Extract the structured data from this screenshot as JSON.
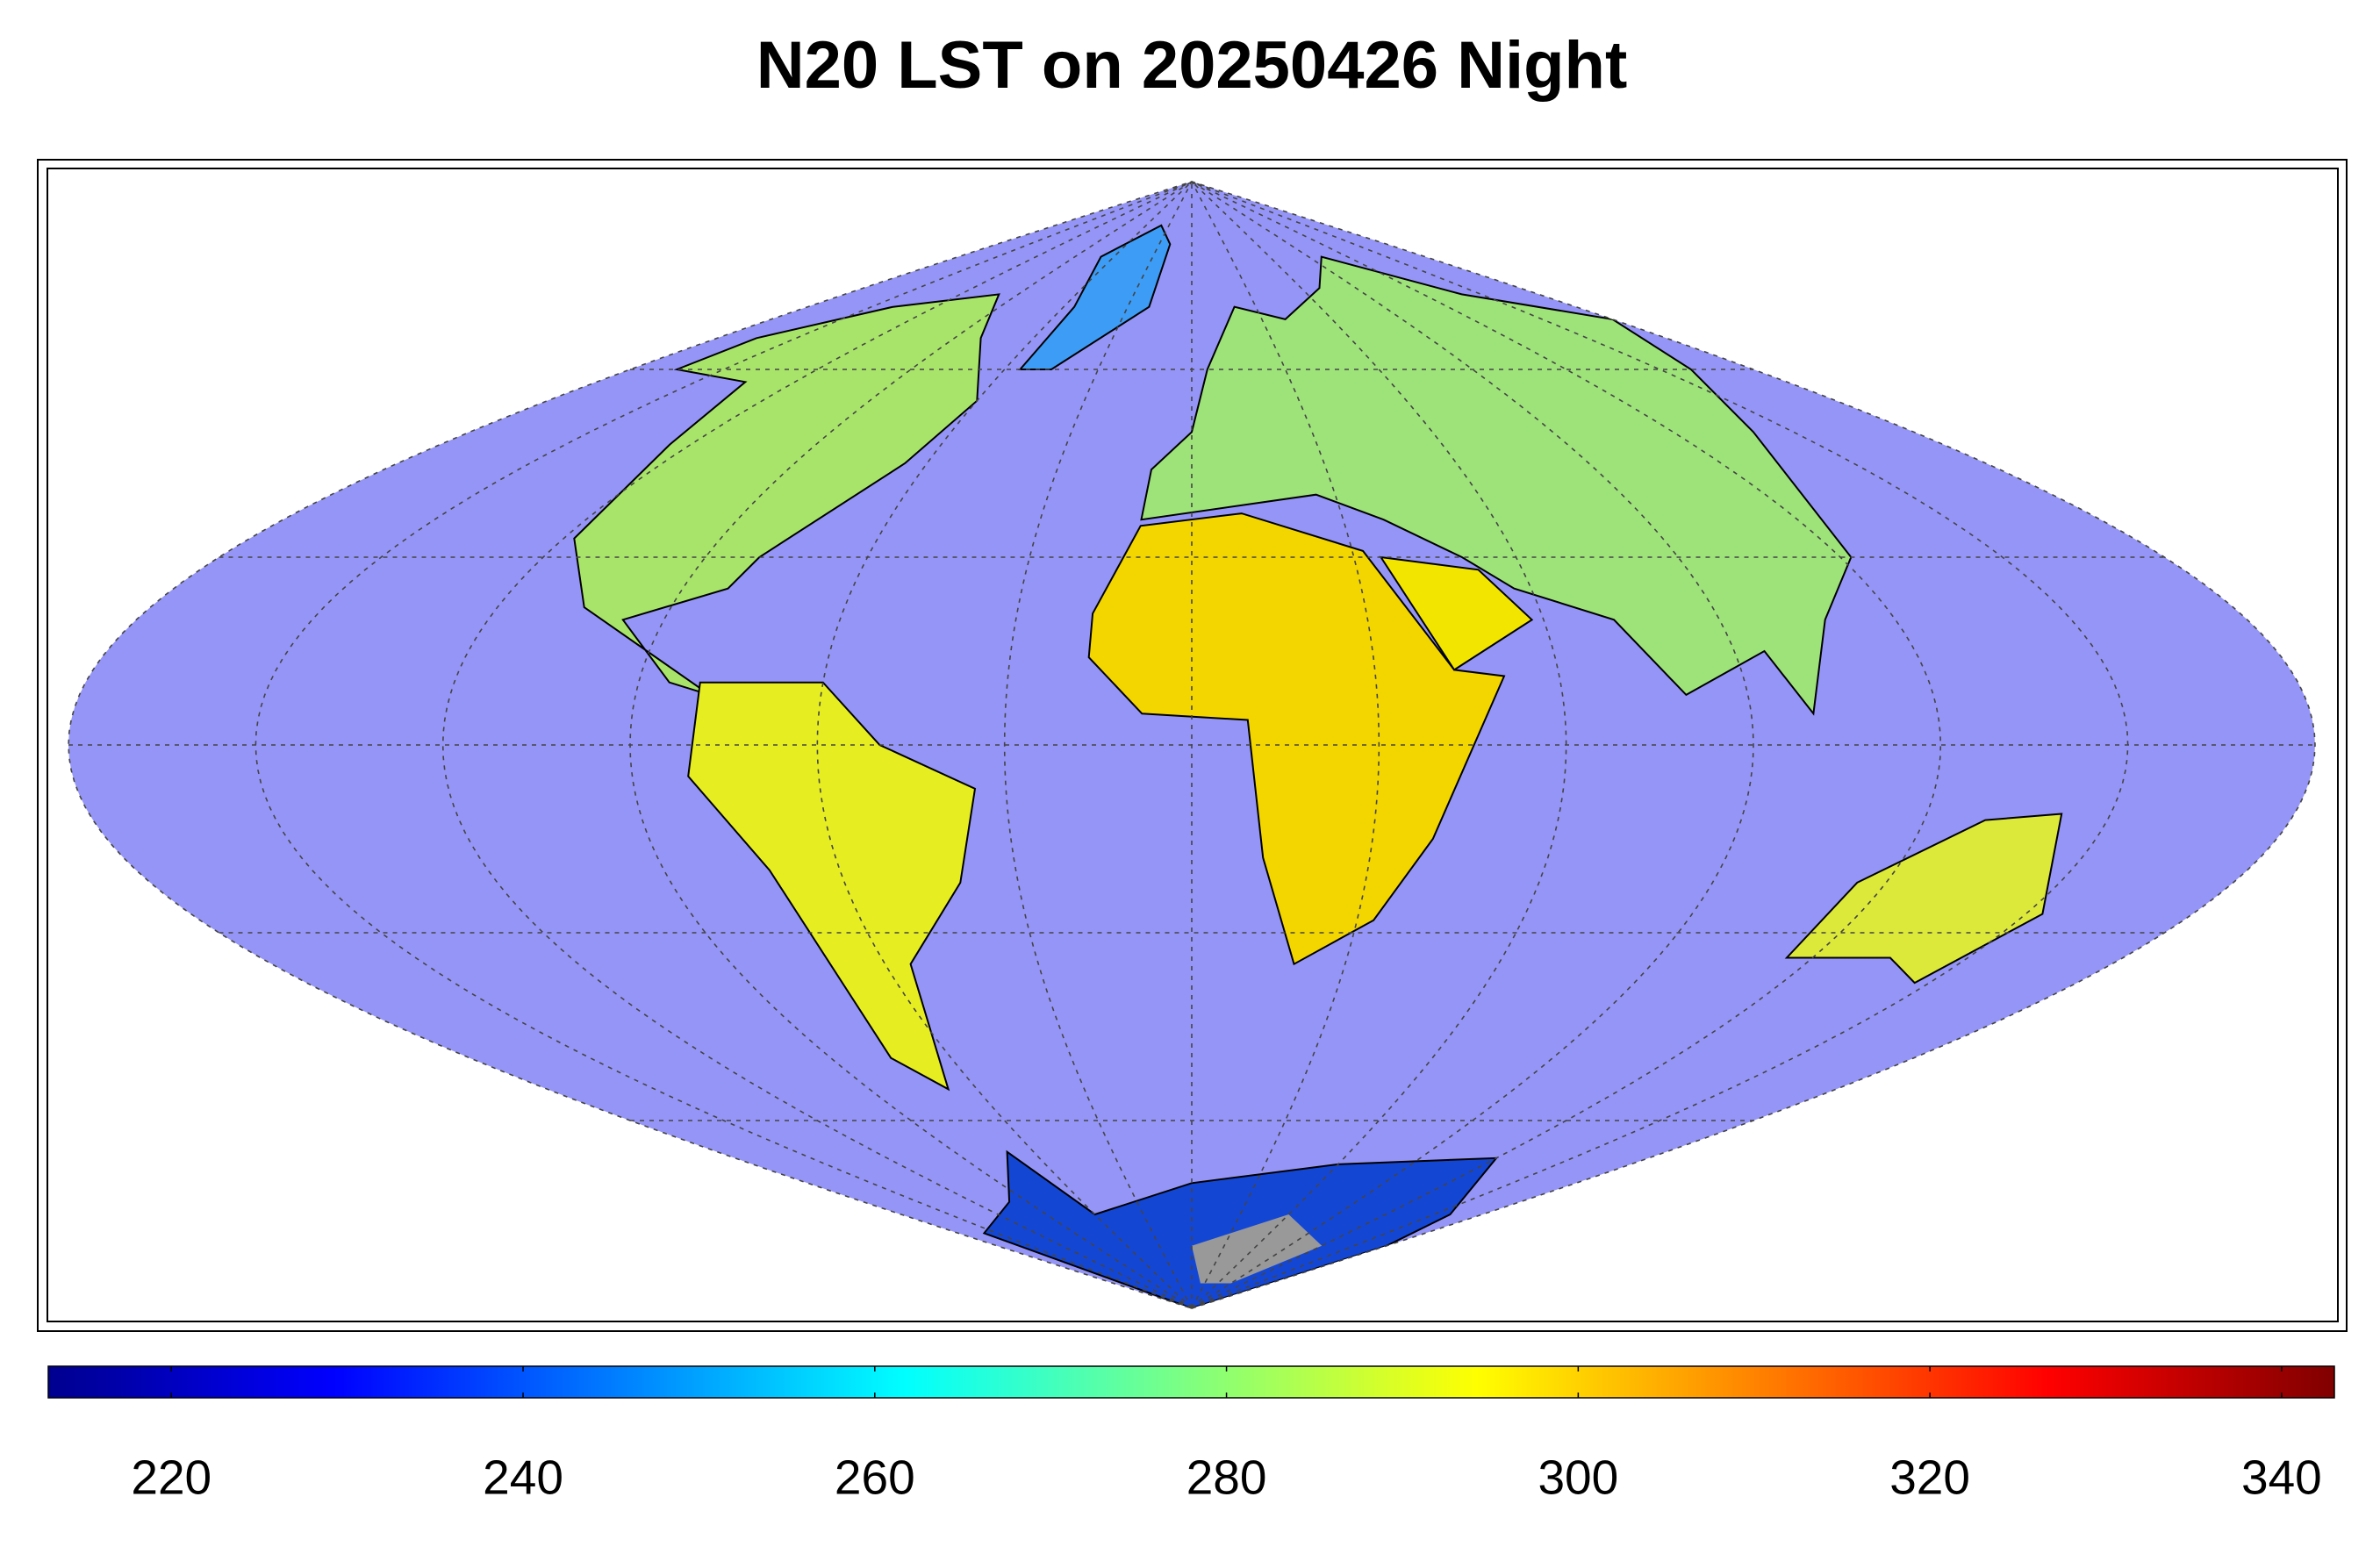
{
  "title": "N20 LST on 20250426 Night",
  "colorbar": {
    "colormap": "jet",
    "lim": [
      213,
      343
    ],
    "ticks": [
      220,
      240,
      260,
      280,
      300,
      320,
      340
    ]
  }
}
